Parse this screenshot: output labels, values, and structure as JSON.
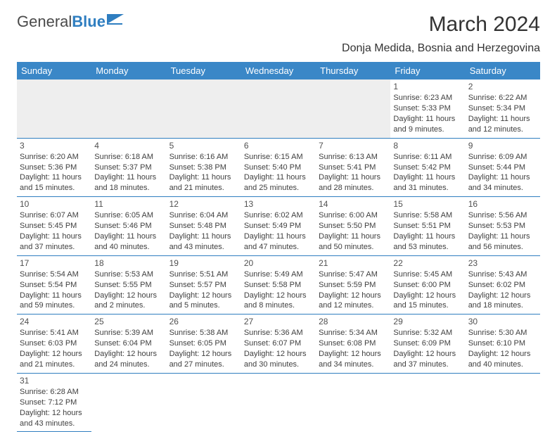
{
  "logo": {
    "text1": "General",
    "text2": "Blue"
  },
  "title": "March 2024",
  "location": "Donja Medida, Bosnia and Herzegovina",
  "colors": {
    "header_bg": "#3a87c7",
    "border": "#2f7ec0",
    "empty_bg": "#eeeeee",
    "text": "#404040"
  },
  "weekdays": [
    "Sunday",
    "Monday",
    "Tuesday",
    "Wednesday",
    "Thursday",
    "Friday",
    "Saturday"
  ],
  "weeks": [
    [
      null,
      null,
      null,
      null,
      null,
      {
        "n": "1",
        "sr": "Sunrise: 6:23 AM",
        "ss": "Sunset: 5:33 PM",
        "d1": "Daylight: 11 hours",
        "d2": "and 9 minutes."
      },
      {
        "n": "2",
        "sr": "Sunrise: 6:22 AM",
        "ss": "Sunset: 5:34 PM",
        "d1": "Daylight: 11 hours",
        "d2": "and 12 minutes."
      }
    ],
    [
      {
        "n": "3",
        "sr": "Sunrise: 6:20 AM",
        "ss": "Sunset: 5:36 PM",
        "d1": "Daylight: 11 hours",
        "d2": "and 15 minutes."
      },
      {
        "n": "4",
        "sr": "Sunrise: 6:18 AM",
        "ss": "Sunset: 5:37 PM",
        "d1": "Daylight: 11 hours",
        "d2": "and 18 minutes."
      },
      {
        "n": "5",
        "sr": "Sunrise: 6:16 AM",
        "ss": "Sunset: 5:38 PM",
        "d1": "Daylight: 11 hours",
        "d2": "and 21 minutes."
      },
      {
        "n": "6",
        "sr": "Sunrise: 6:15 AM",
        "ss": "Sunset: 5:40 PM",
        "d1": "Daylight: 11 hours",
        "d2": "and 25 minutes."
      },
      {
        "n": "7",
        "sr": "Sunrise: 6:13 AM",
        "ss": "Sunset: 5:41 PM",
        "d1": "Daylight: 11 hours",
        "d2": "and 28 minutes."
      },
      {
        "n": "8",
        "sr": "Sunrise: 6:11 AM",
        "ss": "Sunset: 5:42 PM",
        "d1": "Daylight: 11 hours",
        "d2": "and 31 minutes."
      },
      {
        "n": "9",
        "sr": "Sunrise: 6:09 AM",
        "ss": "Sunset: 5:44 PM",
        "d1": "Daylight: 11 hours",
        "d2": "and 34 minutes."
      }
    ],
    [
      {
        "n": "10",
        "sr": "Sunrise: 6:07 AM",
        "ss": "Sunset: 5:45 PM",
        "d1": "Daylight: 11 hours",
        "d2": "and 37 minutes."
      },
      {
        "n": "11",
        "sr": "Sunrise: 6:05 AM",
        "ss": "Sunset: 5:46 PM",
        "d1": "Daylight: 11 hours",
        "d2": "and 40 minutes."
      },
      {
        "n": "12",
        "sr": "Sunrise: 6:04 AM",
        "ss": "Sunset: 5:48 PM",
        "d1": "Daylight: 11 hours",
        "d2": "and 43 minutes."
      },
      {
        "n": "13",
        "sr": "Sunrise: 6:02 AM",
        "ss": "Sunset: 5:49 PM",
        "d1": "Daylight: 11 hours",
        "d2": "and 47 minutes."
      },
      {
        "n": "14",
        "sr": "Sunrise: 6:00 AM",
        "ss": "Sunset: 5:50 PM",
        "d1": "Daylight: 11 hours",
        "d2": "and 50 minutes."
      },
      {
        "n": "15",
        "sr": "Sunrise: 5:58 AM",
        "ss": "Sunset: 5:51 PM",
        "d1": "Daylight: 11 hours",
        "d2": "and 53 minutes."
      },
      {
        "n": "16",
        "sr": "Sunrise: 5:56 AM",
        "ss": "Sunset: 5:53 PM",
        "d1": "Daylight: 11 hours",
        "d2": "and 56 minutes."
      }
    ],
    [
      {
        "n": "17",
        "sr": "Sunrise: 5:54 AM",
        "ss": "Sunset: 5:54 PM",
        "d1": "Daylight: 11 hours",
        "d2": "and 59 minutes."
      },
      {
        "n": "18",
        "sr": "Sunrise: 5:53 AM",
        "ss": "Sunset: 5:55 PM",
        "d1": "Daylight: 12 hours",
        "d2": "and 2 minutes."
      },
      {
        "n": "19",
        "sr": "Sunrise: 5:51 AM",
        "ss": "Sunset: 5:57 PM",
        "d1": "Daylight: 12 hours",
        "d2": "and 5 minutes."
      },
      {
        "n": "20",
        "sr": "Sunrise: 5:49 AM",
        "ss": "Sunset: 5:58 PM",
        "d1": "Daylight: 12 hours",
        "d2": "and 8 minutes."
      },
      {
        "n": "21",
        "sr": "Sunrise: 5:47 AM",
        "ss": "Sunset: 5:59 PM",
        "d1": "Daylight: 12 hours",
        "d2": "and 12 minutes."
      },
      {
        "n": "22",
        "sr": "Sunrise: 5:45 AM",
        "ss": "Sunset: 6:00 PM",
        "d1": "Daylight: 12 hours",
        "d2": "and 15 minutes."
      },
      {
        "n": "23",
        "sr": "Sunrise: 5:43 AM",
        "ss": "Sunset: 6:02 PM",
        "d1": "Daylight: 12 hours",
        "d2": "and 18 minutes."
      }
    ],
    [
      {
        "n": "24",
        "sr": "Sunrise: 5:41 AM",
        "ss": "Sunset: 6:03 PM",
        "d1": "Daylight: 12 hours",
        "d2": "and 21 minutes."
      },
      {
        "n": "25",
        "sr": "Sunrise: 5:39 AM",
        "ss": "Sunset: 6:04 PM",
        "d1": "Daylight: 12 hours",
        "d2": "and 24 minutes."
      },
      {
        "n": "26",
        "sr": "Sunrise: 5:38 AM",
        "ss": "Sunset: 6:05 PM",
        "d1": "Daylight: 12 hours",
        "d2": "and 27 minutes."
      },
      {
        "n": "27",
        "sr": "Sunrise: 5:36 AM",
        "ss": "Sunset: 6:07 PM",
        "d1": "Daylight: 12 hours",
        "d2": "and 30 minutes."
      },
      {
        "n": "28",
        "sr": "Sunrise: 5:34 AM",
        "ss": "Sunset: 6:08 PM",
        "d1": "Daylight: 12 hours",
        "d2": "and 34 minutes."
      },
      {
        "n": "29",
        "sr": "Sunrise: 5:32 AM",
        "ss": "Sunset: 6:09 PM",
        "d1": "Daylight: 12 hours",
        "d2": "and 37 minutes."
      },
      {
        "n": "30",
        "sr": "Sunrise: 5:30 AM",
        "ss": "Sunset: 6:10 PM",
        "d1": "Daylight: 12 hours",
        "d2": "and 40 minutes."
      }
    ],
    [
      {
        "n": "31",
        "sr": "Sunrise: 6:28 AM",
        "ss": "Sunset: 7:12 PM",
        "d1": "Daylight: 12 hours",
        "d2": "and 43 minutes."
      },
      null,
      null,
      null,
      null,
      null,
      null
    ]
  ]
}
